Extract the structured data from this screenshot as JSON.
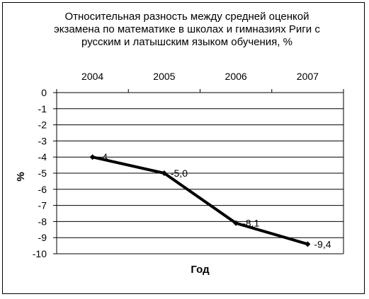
{
  "chart_data": {
    "type": "line",
    "title": "Относительная разность между средней оценкой экзамена по математике в школах и гимназиях Риги с русским и латышским языком обучения, %",
    "title_lines": [
      "Относительная разность между средней оценкой",
      "экзамена по математике в школах и гимназиях Риги с",
      "русским и латышским языком обучения, %"
    ],
    "xlabel": "Год",
    "ylabel": "%",
    "categories": [
      "2004",
      "2005",
      "2006",
      "2007"
    ],
    "series": [
      {
        "values": [
          -4,
          -5,
          -8.1,
          -9.4
        ],
        "labels": [
          "-4",
          "-5,0",
          "-8,1",
          "-9,4"
        ]
      }
    ],
    "ylim": [
      -10,
      0
    ],
    "yticks": [
      "0",
      "-1",
      "-2",
      "-3",
      "-4",
      "-5",
      "-6",
      "-7",
      "-8",
      "-9",
      "-10"
    ],
    "x_axis_position": "top",
    "grid": true,
    "legend": "none",
    "line_color": "#000000"
  }
}
